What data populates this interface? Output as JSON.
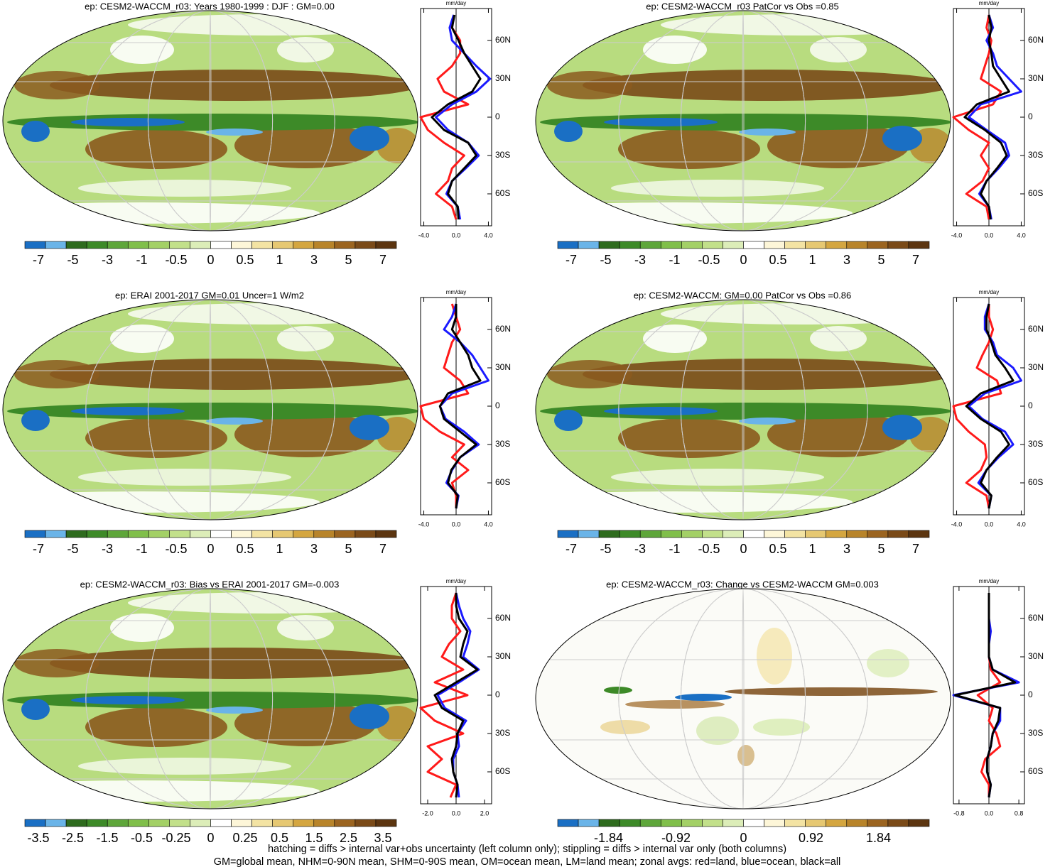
{
  "chart_data": [
    {
      "type": "line",
      "title": "ep: CESM2-WACCM_r03: Years 1980-1999 : DJF : GM=0.00",
      "x_label": "mm/day",
      "y": [
        -80,
        -70,
        -60,
        -50,
        -40,
        -30,
        -20,
        -10,
        0,
        10,
        20,
        30,
        40,
        50,
        60,
        70,
        80
      ],
      "series": [
        {
          "color": "#ff1a1a",
          "values": [
            0.0,
            -0.5,
            -2.5,
            -1.0,
            -0.5,
            1.0,
            -1.5,
            -3.5,
            -4.4,
            1.5,
            -1.5,
            -2.3,
            -0.5,
            0.5,
            0.5,
            -0.5,
            -0.3
          ]
        },
        {
          "color": "#1a1aff",
          "values": [
            0.5,
            0.2,
            -1.2,
            -0.5,
            1.2,
            2.8,
            1.5,
            -1.0,
            -2.5,
            -0.5,
            2.5,
            4.2,
            2.5,
            1.0,
            -0.5,
            -0.8,
            -0.3
          ]
        },
        {
          "color": "#000000",
          "values": [
            0.3,
            0.2,
            -1.0,
            -0.5,
            1.0,
            2.5,
            1.5,
            -1.5,
            -3.0,
            -1.0,
            2.0,
            3.0,
            2.0,
            1.0,
            0.3,
            -0.5,
            -0.2
          ]
        }
      ],
      "xlim": [
        -4.4,
        4.4
      ],
      "xticks": [
        {
          "value": -4,
          "label": "-4.0"
        },
        {
          "value": 0,
          "label": "0.0"
        },
        {
          "value": 4,
          "label": "4.0"
        }
      ],
      "ylim": [
        -85,
        85
      ],
      "yticks": [
        {
          "value": 60,
          "label": "60N"
        },
        {
          "value": 30,
          "label": "30N"
        },
        0,
        {
          "value": -30,
          "label": "30S"
        },
        {
          "value": -60,
          "label": "60S"
        }
      ],
      "colorbar": {
        "colors": [
          "#1a6fc4",
          "#6ab4e8",
          "#2e6b1e",
          "#3d8a28",
          "#5ea63a",
          "#80bf4a",
          "#a3d066",
          "#c2e08a",
          "#dcedb8",
          "#ffffff",
          "#fdf6d8",
          "#f3e3a3",
          "#e6c872",
          "#d4a640",
          "#b8842a",
          "#9b6420",
          "#7a4a18",
          "#5c3510"
        ],
        "labels": [
          -7,
          -5,
          -3,
          -1,
          -0.5,
          0,
          0.5,
          1,
          3,
          5,
          7
        ]
      }
    },
    {
      "type": "line",
      "title": "ep: CESM2-WACCM_r03 PatCor vs Obs =0.85",
      "x_label": "mm/day",
      "y": [
        -80,
        -70,
        -60,
        -50,
        -40,
        -30,
        -20,
        -10,
        0,
        10,
        20,
        30,
        40,
        50,
        60,
        70,
        80
      ],
      "series": [
        {
          "color": "#ff1a1a",
          "values": [
            0.0,
            -0.3,
            -2.8,
            -0.8,
            0.0,
            -1.0,
            0.0,
            -2.5,
            -4.4,
            0.5,
            1.5,
            -1.0,
            -0.5,
            0.0,
            0.3,
            -0.3,
            0.0
          ]
        },
        {
          "color": "#1a1aff",
          "values": [
            0.3,
            0.0,
            -1.2,
            -0.3,
            1.2,
            2.5,
            2.0,
            -0.3,
            -2.5,
            -1.0,
            4.0,
            2.5,
            1.0,
            0.5,
            -0.3,
            0.5,
            0.0
          ]
        },
        {
          "color": "#000000",
          "values": [
            0.2,
            0.0,
            -1.0,
            -0.3,
            1.0,
            2.2,
            1.5,
            -0.5,
            -3.0,
            -1.5,
            2.5,
            1.5,
            0.5,
            0.3,
            0.0,
            0.3,
            0.0
          ]
        }
      ],
      "xlim": [
        -4.4,
        4.4
      ],
      "xticks": [
        {
          "value": -4,
          "label": "-4.0"
        },
        {
          "value": 0,
          "label": "0.0"
        },
        {
          "value": 4,
          "label": "4.0"
        }
      ],
      "ylim": [
        -85,
        85
      ],
      "yticks": [
        {
          "value": 60,
          "label": "60N"
        },
        {
          "value": 30,
          "label": "30N"
        },
        0,
        {
          "value": -30,
          "label": "30S"
        },
        {
          "value": -60,
          "label": "60S"
        }
      ],
      "colorbar": {
        "colors": [
          "#1a6fc4",
          "#6ab4e8",
          "#2e6b1e",
          "#3d8a28",
          "#5ea63a",
          "#80bf4a",
          "#a3d066",
          "#c2e08a",
          "#dcedb8",
          "#ffffff",
          "#fdf6d8",
          "#f3e3a3",
          "#e6c872",
          "#d4a640",
          "#b8842a",
          "#9b6420",
          "#7a4a18",
          "#5c3510"
        ],
        "labels": [
          -7,
          -5,
          -3,
          -1,
          -0.5,
          0,
          0.5,
          1,
          3,
          5,
          7
        ]
      }
    },
    {
      "type": "line",
      "title": "ep: ERAI 2001-2017 GM=0.01 Uncer=1 W/m2",
      "x_label": "mm/day",
      "y": [
        -80,
        -70,
        -60,
        -50,
        -40,
        -30,
        -20,
        -10,
        0,
        10,
        20,
        30,
        40,
        50,
        60,
        70,
        80
      ],
      "series": [
        {
          "color": "#ff1a1a",
          "values": [
            0.0,
            0.0,
            -0.5,
            1.5,
            -0.5,
            1.0,
            -2.0,
            -4.0,
            -4.4,
            1.5,
            0.5,
            -1.5,
            -1.0,
            -0.5,
            0.5,
            0.0,
            -0.5
          ]
        },
        {
          "color": "#1a1aff",
          "values": [
            0.0,
            0.3,
            -1.2,
            -0.5,
            0.5,
            2.8,
            1.0,
            -1.3,
            -2.0,
            -0.5,
            4.0,
            3.0,
            2.0,
            0.5,
            -1.5,
            -0.5,
            0.0
          ]
        },
        {
          "color": "#000000",
          "values": [
            0.0,
            0.2,
            -1.0,
            -0.6,
            0.5,
            2.5,
            0.5,
            -1.5,
            -2.0,
            -1.0,
            3.0,
            2.0,
            1.5,
            0.5,
            -0.5,
            0.0,
            0.0
          ]
        }
      ],
      "xlim": [
        -4.4,
        4.4
      ],
      "xticks": [
        {
          "value": -4,
          "label": "-4.0"
        },
        {
          "value": 0,
          "label": "0.0"
        },
        {
          "value": 4,
          "label": "4.0"
        }
      ],
      "ylim": [
        -85,
        85
      ],
      "yticks": [
        {
          "value": 60,
          "label": "60N"
        },
        {
          "value": 30,
          "label": "30N"
        },
        0,
        {
          "value": -30,
          "label": "30S"
        },
        {
          "value": -60,
          "label": "60S"
        }
      ],
      "colorbar": {
        "colors": [
          "#1a6fc4",
          "#6ab4e8",
          "#2e6b1e",
          "#3d8a28",
          "#5ea63a",
          "#80bf4a",
          "#a3d066",
          "#c2e08a",
          "#dcedb8",
          "#ffffff",
          "#fdf6d8",
          "#f3e3a3",
          "#e6c872",
          "#d4a640",
          "#b8842a",
          "#9b6420",
          "#7a4a18",
          "#5c3510"
        ],
        "labels": [
          -7,
          -5,
          -3,
          -1,
          -0.5,
          0,
          0.5,
          1,
          3,
          5,
          7
        ]
      }
    },
    {
      "type": "line",
      "title": "ep: CESM2-WACCM: GM=0.00 PatCor vs Obs =0.86",
      "x_label": "mm/day",
      "y": [
        -80,
        -70,
        -60,
        -50,
        -40,
        -30,
        -20,
        -10,
        0,
        10,
        20,
        30,
        40,
        50,
        60,
        70,
        80
      ],
      "series": [
        {
          "color": "#ff1a1a",
          "values": [
            0.0,
            -0.3,
            -2.8,
            -1.0,
            -0.3,
            -0.5,
            -2.5,
            -4.0,
            -4.4,
            1.5,
            1.0,
            -1.5,
            -0.8,
            0.0,
            0.5,
            0.0,
            0.0
          ]
        },
        {
          "color": "#1a1aff",
          "values": [
            0.0,
            0.3,
            -1.3,
            -0.3,
            1.2,
            3.0,
            2.0,
            -0.8,
            -2.5,
            -0.5,
            4.0,
            3.0,
            1.0,
            0.5,
            -0.5,
            -0.5,
            0.0
          ]
        },
        {
          "color": "#000000",
          "values": [
            0.0,
            0.3,
            -1.0,
            -0.3,
            1.0,
            2.5,
            1.5,
            -1.0,
            -2.8,
            -1.0,
            3.0,
            2.0,
            0.8,
            0.3,
            -0.3,
            -0.3,
            0.0
          ]
        }
      ],
      "xlim": [
        -4.4,
        4.4
      ],
      "xticks": [
        {
          "value": -4,
          "label": "-4.0"
        },
        {
          "value": 0,
          "label": "0.0"
        },
        {
          "value": 4,
          "label": "4.0"
        }
      ],
      "ylim": [
        -85,
        85
      ],
      "yticks": [
        {
          "value": 60,
          "label": "60N"
        },
        {
          "value": 30,
          "label": "30N"
        },
        0,
        {
          "value": -30,
          "label": "30S"
        },
        {
          "value": -60,
          "label": "60S"
        }
      ],
      "colorbar": {
        "colors": [
          "#1a6fc4",
          "#6ab4e8",
          "#2e6b1e",
          "#3d8a28",
          "#5ea63a",
          "#80bf4a",
          "#a3d066",
          "#c2e08a",
          "#dcedb8",
          "#ffffff",
          "#fdf6d8",
          "#f3e3a3",
          "#e6c872",
          "#d4a640",
          "#b8842a",
          "#9b6420",
          "#7a4a18",
          "#5c3510"
        ],
        "labels": [
          -7,
          -5,
          -3,
          -1,
          -0.5,
          0,
          0.5,
          1,
          3,
          5,
          7
        ]
      }
    },
    {
      "type": "line",
      "title": "ep: CESM2-WACCM_r03: Bias vs ERAI 2001-2017 GM=-0.003",
      "x_label": "mm/day",
      "y": [
        -80,
        -70,
        -60,
        -50,
        -40,
        -30,
        -20,
        -10,
        0,
        10,
        20,
        30,
        40,
        50,
        60,
        70,
        80
      ],
      "series": [
        {
          "color": "#ff1a1a",
          "values": [
            -0.4,
            0.0,
            -2.0,
            -1.0,
            -2.0,
            0.5,
            -1.5,
            -2.5,
            0.8,
            -1.5,
            0.5,
            -1.0,
            -0.5,
            0.3,
            -0.3,
            -0.3,
            0.0
          ]
        },
        {
          "color": "#1a1aff",
          "values": [
            0.2,
            0.1,
            -0.2,
            -0.2,
            0.2,
            0.1,
            0.7,
            -0.8,
            -1.3,
            0.2,
            1.6,
            0.5,
            0.8,
            1.0,
            0.5,
            0.2,
            0.0
          ]
        },
        {
          "color": "#000000",
          "values": [
            0.0,
            0.1,
            -0.2,
            -0.3,
            0.0,
            0.1,
            0.5,
            -1.0,
            -1.5,
            0.0,
            1.5,
            0.3,
            0.5,
            0.8,
            0.2,
            0.0,
            0.0
          ]
        }
      ],
      "xlim": [
        -2.5,
        2.5
      ],
      "xticks": [
        {
          "value": -2,
          "label": "-2.0"
        },
        {
          "value": 0,
          "label": "0.0"
        },
        {
          "value": 2,
          "label": "2.0"
        }
      ],
      "ylim": [
        -85,
        85
      ],
      "yticks": [
        {
          "value": 60,
          "label": "60N"
        },
        {
          "value": 30,
          "label": "30N"
        },
        0,
        {
          "value": -30,
          "label": "30S"
        },
        {
          "value": -60,
          "label": "60S"
        }
      ],
      "colorbar": {
        "colors": [
          "#1a6fc4",
          "#6ab4e8",
          "#2e6b1e",
          "#3d8a28",
          "#5ea63a",
          "#80bf4a",
          "#a3d066",
          "#c2e08a",
          "#dcedb8",
          "#ffffff",
          "#fdf6d8",
          "#f3e3a3",
          "#e6c872",
          "#d4a640",
          "#b8842a",
          "#9b6420",
          "#7a4a18",
          "#5c3510"
        ],
        "labels": [
          -3.5,
          -2.5,
          -1.5,
          -0.5,
          -0.25,
          0,
          0.25,
          0.5,
          1.5,
          2.5,
          3.5
        ]
      }
    },
    {
      "type": "line",
      "title": "ep: CESM2-WACCM_r03: Change vs CESM2-WACCM GM=0.003",
      "x_label": "mm/day",
      "y": [
        -80,
        -70,
        -60,
        -50,
        -40,
        -30,
        -20,
        -10,
        0,
        10,
        20,
        30,
        40,
        50,
        60,
        70,
        80
      ],
      "series": [
        {
          "color": "#ff1a1a",
          "values": [
            0.0,
            0.0,
            -0.2,
            -0.1,
            0.3,
            0.2,
            0.0,
            0.1,
            -0.3,
            0.3,
            0.05,
            0.0,
            0.0,
            0.0,
            0.0,
            0.0,
            0.0
          ]
        },
        {
          "color": "#1a1aff",
          "values": [
            0.0,
            0.05,
            -0.05,
            -0.05,
            0.05,
            0.1,
            0.3,
            0.3,
            -0.95,
            0.8,
            0.1,
            0.0,
            0.0,
            0.05,
            0.0,
            0.0,
            0.0
          ]
        },
        {
          "color": "#000000",
          "values": [
            0.0,
            0.05,
            -0.05,
            -0.05,
            0.05,
            0.1,
            0.25,
            0.3,
            -0.9,
            0.7,
            0.1,
            0.0,
            0.0,
            0.0,
            0.0,
            0.0,
            0.0
          ]
        }
      ],
      "xlim": [
        -0.95,
        0.95
      ],
      "xticks": [
        {
          "value": -0.8,
          "label": "-0.8"
        },
        {
          "value": 0,
          "label": "0.0"
        },
        {
          "value": 0.8,
          "label": "0.8"
        }
      ],
      "ylim": [
        -85,
        85
      ],
      "yticks": [
        {
          "value": 60,
          "label": "60N"
        },
        {
          "value": 30,
          "label": "30N"
        },
        0,
        {
          "value": -30,
          "label": "30S"
        },
        {
          "value": -60,
          "label": "60S"
        }
      ],
      "colorbar": {
        "colors": [
          "#1a6fc4",
          "#6ab4e8",
          "#2e6b1e",
          "#3d8a28",
          "#5ea63a",
          "#80bf4a",
          "#a3d066",
          "#c2e08a",
          "#dcedb8",
          "#ffffff",
          "#fdf6d8",
          "#f3e3a3",
          "#e6c872",
          "#d4a640",
          "#b8842a",
          "#9b6420",
          "#7a4a18",
          "#5c3510"
        ],
        "labels": [
          -1.84,
          -0.92,
          0,
          0.92,
          1.84
        ]
      }
    }
  ],
  "notes": [
    "hatching = diffs > internal var+obs uncertainty (left column only); stippling = diffs > internal var only (both columns)",
    "GM=global mean, NHM=0-90N mean, SHM=0-90S mean, OM=ocean mean, LM=land mean; zonal avgs: red=land, blue=ocean, black=all"
  ]
}
